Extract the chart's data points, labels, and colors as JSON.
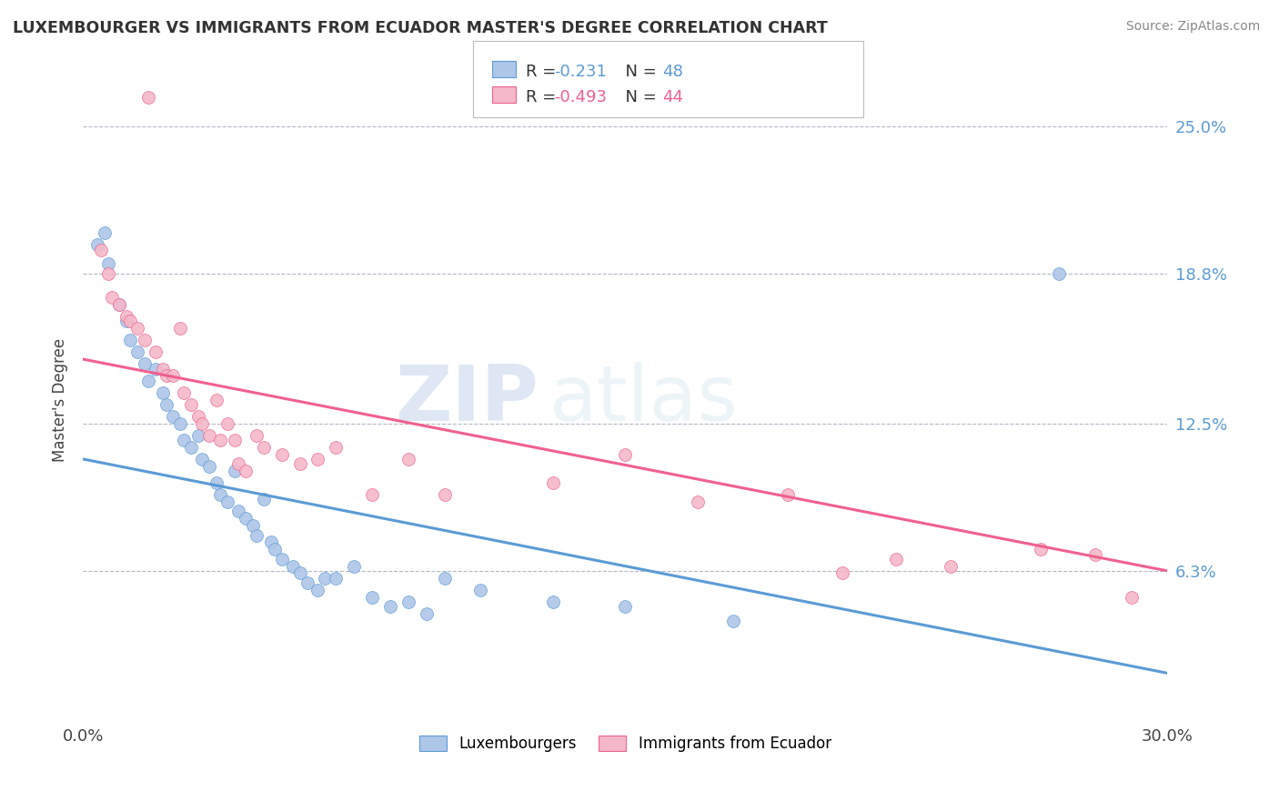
{
  "title": "LUXEMBOURGER VS IMMIGRANTS FROM ECUADOR MASTER'S DEGREE CORRELATION CHART",
  "source": "Source: ZipAtlas.com",
  "ylabel": "Master's Degree",
  "ytick_labels": [
    "6.3%",
    "12.5%",
    "18.8%",
    "25.0%"
  ],
  "ytick_values": [
    0.063,
    0.125,
    0.188,
    0.25
  ],
  "xlim": [
    0.0,
    0.3
  ],
  "ylim": [
    0.0,
    0.27
  ],
  "lux_line": {
    "x": [
      0.0,
      0.3
    ],
    "y": [
      0.11,
      0.02
    ]
  },
  "ecuador_line": {
    "x": [
      0.0,
      0.3
    ],
    "y": [
      0.152,
      0.063
    ]
  },
  "lux_color": "#5b9bd5",
  "ecuador_color": "#f06090",
  "lux_scatter_color": "#aec6e8",
  "ecuador_scatter_color": "#f4b8c8",
  "watermark_zip": "ZIP",
  "watermark_atlas": "atlas",
  "background_color": "#ffffff",
  "grid_color": "#b0b8c8",
  "luxembourger_scatter": [
    [
      0.004,
      0.2
    ],
    [
      0.006,
      0.205
    ],
    [
      0.007,
      0.192
    ],
    [
      0.01,
      0.175
    ],
    [
      0.012,
      0.168
    ],
    [
      0.013,
      0.16
    ],
    [
      0.015,
      0.155
    ],
    [
      0.017,
      0.15
    ],
    [
      0.018,
      0.143
    ],
    [
      0.02,
      0.148
    ],
    [
      0.022,
      0.138
    ],
    [
      0.023,
      0.133
    ],
    [
      0.025,
      0.128
    ],
    [
      0.027,
      0.125
    ],
    [
      0.028,
      0.118
    ],
    [
      0.03,
      0.115
    ],
    [
      0.032,
      0.12
    ],
    [
      0.033,
      0.11
    ],
    [
      0.035,
      0.107
    ],
    [
      0.037,
      0.1
    ],
    [
      0.038,
      0.095
    ],
    [
      0.04,
      0.092
    ],
    [
      0.042,
      0.105
    ],
    [
      0.043,
      0.088
    ],
    [
      0.045,
      0.085
    ],
    [
      0.047,
      0.082
    ],
    [
      0.048,
      0.078
    ],
    [
      0.05,
      0.093
    ],
    [
      0.052,
      0.075
    ],
    [
      0.053,
      0.072
    ],
    [
      0.055,
      0.068
    ],
    [
      0.058,
      0.065
    ],
    [
      0.06,
      0.062
    ],
    [
      0.062,
      0.058
    ],
    [
      0.065,
      0.055
    ],
    [
      0.067,
      0.06
    ],
    [
      0.07,
      0.06
    ],
    [
      0.075,
      0.065
    ],
    [
      0.08,
      0.052
    ],
    [
      0.085,
      0.048
    ],
    [
      0.09,
      0.05
    ],
    [
      0.095,
      0.045
    ],
    [
      0.1,
      0.06
    ],
    [
      0.11,
      0.055
    ],
    [
      0.13,
      0.05
    ],
    [
      0.15,
      0.048
    ],
    [
      0.18,
      0.042
    ],
    [
      0.27,
      0.188
    ]
  ],
  "ecuador_scatter": [
    [
      0.005,
      0.198
    ],
    [
      0.007,
      0.188
    ],
    [
      0.008,
      0.178
    ],
    [
      0.01,
      0.175
    ],
    [
      0.012,
      0.17
    ],
    [
      0.013,
      0.168
    ],
    [
      0.015,
      0.165
    ],
    [
      0.017,
      0.16
    ],
    [
      0.018,
      0.262
    ],
    [
      0.02,
      0.155
    ],
    [
      0.022,
      0.148
    ],
    [
      0.023,
      0.145
    ],
    [
      0.025,
      0.145
    ],
    [
      0.027,
      0.165
    ],
    [
      0.028,
      0.138
    ],
    [
      0.03,
      0.133
    ],
    [
      0.032,
      0.128
    ],
    [
      0.033,
      0.125
    ],
    [
      0.035,
      0.12
    ],
    [
      0.037,
      0.135
    ],
    [
      0.038,
      0.118
    ],
    [
      0.04,
      0.125
    ],
    [
      0.042,
      0.118
    ],
    [
      0.043,
      0.108
    ],
    [
      0.045,
      0.105
    ],
    [
      0.048,
      0.12
    ],
    [
      0.05,
      0.115
    ],
    [
      0.055,
      0.112
    ],
    [
      0.06,
      0.108
    ],
    [
      0.065,
      0.11
    ],
    [
      0.07,
      0.115
    ],
    [
      0.08,
      0.095
    ],
    [
      0.09,
      0.11
    ],
    [
      0.1,
      0.095
    ],
    [
      0.13,
      0.1
    ],
    [
      0.15,
      0.112
    ],
    [
      0.17,
      0.092
    ],
    [
      0.195,
      0.095
    ],
    [
      0.21,
      0.062
    ],
    [
      0.225,
      0.068
    ],
    [
      0.24,
      0.065
    ],
    [
      0.265,
      0.072
    ],
    [
      0.28,
      0.07
    ],
    [
      0.29,
      0.052
    ]
  ]
}
